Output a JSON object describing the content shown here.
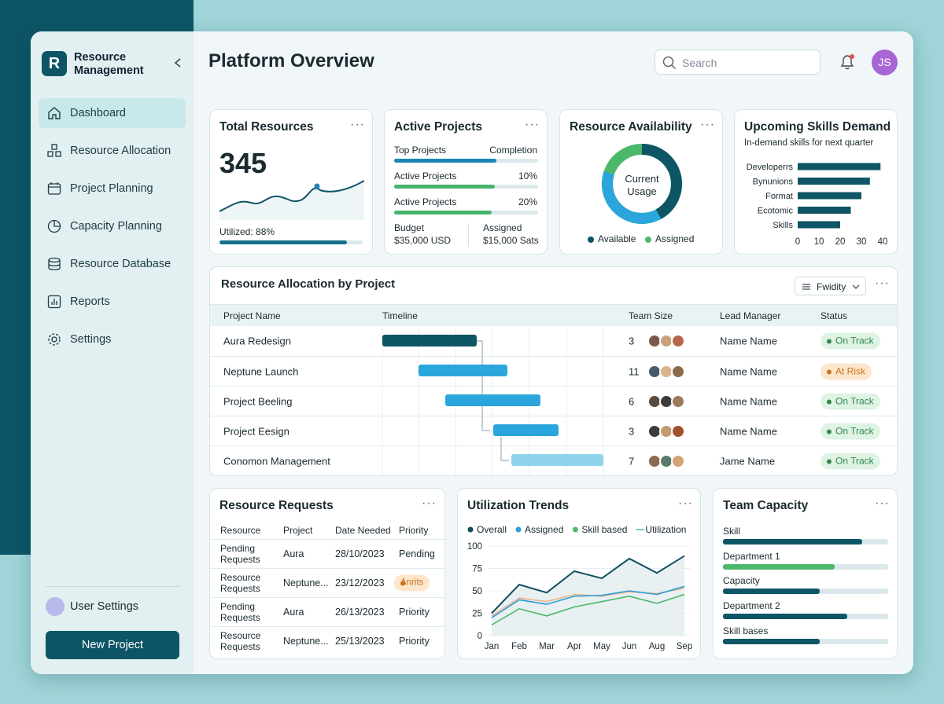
{
  "sidebar": {
    "brand": "Resource Management",
    "nav": [
      "Dashboard",
      "Resource Allocation",
      "Project Planning",
      "Capacity Planning",
      "Resource Database",
      "Reports",
      "Settings"
    ],
    "user": "User Settings",
    "button": "New Project"
  },
  "header": {
    "title": "Platform Overview",
    "search": "Search",
    "avatar": "JS"
  },
  "total_resources": {
    "title": "Total Resources",
    "value": 345,
    "utilized": "Utilized: 88%"
  },
  "active_projects": {
    "title": "Active Projects",
    "rows": [
      [
        "Top Projects",
        "Completion"
      ],
      [
        "Active Projects",
        "10%"
      ],
      [
        "Active Projects",
        "20%"
      ]
    ],
    "budget": [
      "Budget",
      "$35,000 USD"
    ],
    "assigned": [
      "Assigned",
      "$15,000 Sats"
    ]
  },
  "availability": {
    "title": "Resource Availability",
    "center": [
      "Current",
      "Usage"
    ],
    "legend": [
      "Available",
      "Assigned"
    ]
  },
  "allocation": {
    "title": "Resource Allocation by Project",
    "filter": "Fwidity",
    "columns": [
      "Project Name",
      "Timeline",
      "Team Size",
      "Lead Manager",
      "Status"
    ],
    "rows": [
      [
        "Aura Redesign",
        3,
        "Name Name",
        "On Track"
      ],
      [
        "Neptune Launch",
        11,
        "Name Name",
        "At Risk"
      ],
      [
        "Project Beeling",
        6,
        "Name Name",
        "On Track"
      ],
      [
        "Project Eesign",
        3,
        "Name Name",
        "On Track"
      ],
      [
        "Conomon Management",
        7,
        "Jame Name",
        "On Track"
      ]
    ]
  },
  "requests": {
    "title": "Resource Requests",
    "columns": [
      "Resource",
      "Project",
      "Date Needed",
      "Priority"
    ],
    "rows": [
      [
        "Pending Requests",
        "Aura",
        "28/10/2023",
        "Pending"
      ],
      [
        "Resource Requests",
        "Neptune...",
        "23/12/2023",
        "Anrits"
      ],
      [
        "Pending Requests",
        "Aura",
        "26/13/2023",
        "Priority"
      ],
      [
        "Resource Requests",
        "Neptune...",
        "25/13/2023",
        "Priority"
      ]
    ]
  },
  "team_capacity": {
    "title": "Team Capacity",
    "items": [
      "Skill",
      "Department 1",
      "Capacity",
      "Department 2",
      "Skill bases"
    ]
  },
  "chart_data": [
    {
      "type": "hbar",
      "title": "Upcoming Skills Demand",
      "subtitle": "In-demand skills for next quarter",
      "categories": [
        "Developerrs",
        "Bynunions",
        "Format",
        "Ecotomic",
        "Skills"
      ],
      "values": [
        39,
        34,
        30,
        25,
        20
      ],
      "color": "#0e5566",
      "xlim": [
        0,
        40
      ],
      "xticks": [
        0,
        10,
        20,
        30,
        40
      ]
    },
    {
      "type": "line",
      "title": "Utilization Trends",
      "categories": [
        "Jan",
        "Feb",
        "Mar",
        "Apr",
        "May",
        "Jun",
        "Aug",
        "Sep"
      ],
      "series": [
        {
          "name": "Overall",
          "color": "#0e4f60",
          "values": [
            25,
            57,
            48,
            72,
            64,
            86,
            70,
            89
          ]
        },
        {
          "name": "Assigned",
          "color": "#2a9fd6",
          "values": [
            20,
            40,
            35,
            44,
            45,
            50,
            46,
            55
          ]
        },
        {
          "name": "Skill based",
          "color": "#4cb86a",
          "values": [
            12,
            30,
            22,
            32,
            38,
            44,
            36,
            46
          ]
        },
        {
          "name": "Utilization",
          "color": "#f0b48a",
          "values": [
            22,
            42,
            38,
            46,
            44,
            49,
            47,
            53
          ]
        }
      ],
      "ylim": [
        0,
        100
      ],
      "yticks": [
        0,
        25,
        50,
        75,
        100
      ]
    }
  ]
}
